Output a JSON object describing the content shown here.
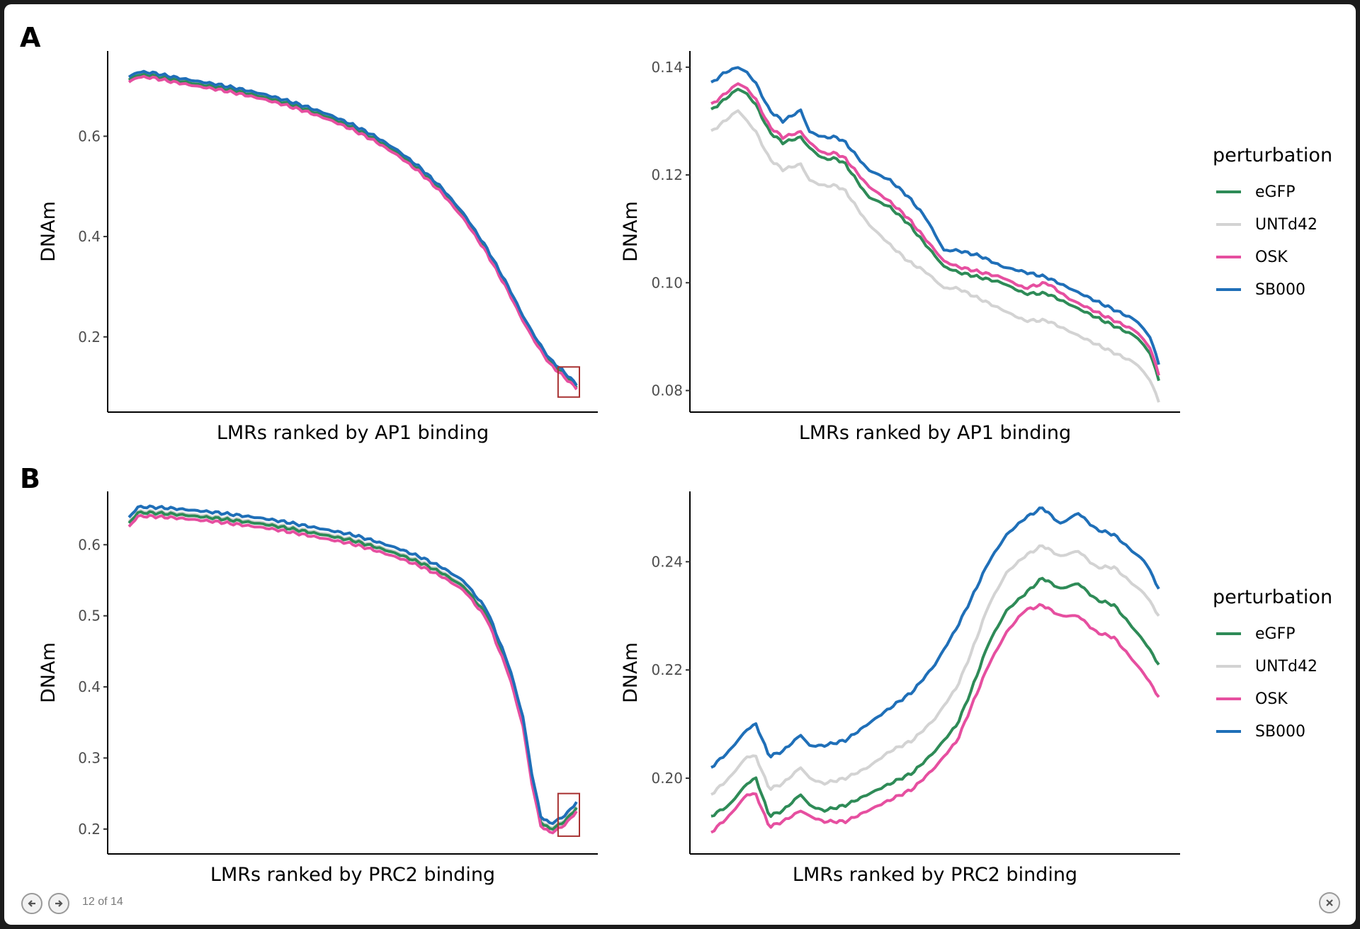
{
  "viewer": {
    "counter_text": "12 of 14",
    "prev_icon": "arrow-left-icon",
    "next_icon": "arrow-right-icon",
    "close_icon": "close-icon"
  },
  "legend": {
    "title": "perturbation",
    "entries": [
      {
        "name": "eGFP",
        "color": "#2e8b57"
      },
      {
        "name": "UNTd42",
        "color": "#d3d3d3"
      },
      {
        "name": "OSK",
        "color": "#e64fa0"
      },
      {
        "name": "SB000",
        "color": "#1f6fb8"
      }
    ]
  },
  "panel_labels": [
    "A",
    "B"
  ],
  "chart_data": [
    {
      "type": "line",
      "panel": "A-left",
      "xlabel": "LMRs ranked by AP1 binding",
      "ylabel": "DNAm",
      "ylim": [
        0.05,
        0.77
      ],
      "yticks": [
        0.2,
        0.4,
        0.6
      ],
      "ytick_labels": [
        "0.2",
        "0.4",
        "0.6"
      ],
      "x": [
        0,
        0.02,
        0.05,
        0.1,
        0.15,
        0.2,
        0.25,
        0.3,
        0.35,
        0.4,
        0.45,
        0.5,
        0.55,
        0.6,
        0.65,
        0.7,
        0.75,
        0.8,
        0.85,
        0.88,
        0.91,
        0.94,
        0.97,
        1.0
      ],
      "series": [
        {
          "name": "eGFP",
          "values": [
            0.712,
            0.722,
            0.721,
            0.712,
            0.704,
            0.697,
            0.688,
            0.678,
            0.666,
            0.652,
            0.636,
            0.617,
            0.594,
            0.566,
            0.532,
            0.49,
            0.437,
            0.37,
            0.29,
            0.236,
            0.19,
            0.15,
            0.126,
            0.1
          ]
        },
        {
          "name": "UNTd42",
          "values": [
            0.714,
            0.724,
            0.723,
            0.714,
            0.706,
            0.699,
            0.69,
            0.68,
            0.668,
            0.654,
            0.638,
            0.619,
            0.596,
            0.568,
            0.534,
            0.492,
            0.439,
            0.372,
            0.292,
            0.238,
            0.192,
            0.152,
            0.128,
            0.102
          ]
        },
        {
          "name": "OSK",
          "values": [
            0.708,
            0.718,
            0.717,
            0.708,
            0.7,
            0.693,
            0.684,
            0.674,
            0.662,
            0.648,
            0.632,
            0.613,
            0.59,
            0.562,
            0.528,
            0.486,
            0.433,
            0.366,
            0.286,
            0.232,
            0.186,
            0.146,
            0.122,
            0.097
          ]
        },
        {
          "name": "SB000",
          "values": [
            0.718,
            0.728,
            0.727,
            0.718,
            0.71,
            0.703,
            0.694,
            0.684,
            0.672,
            0.658,
            0.642,
            0.623,
            0.6,
            0.572,
            0.538,
            0.496,
            0.443,
            0.376,
            0.296,
            0.242,
            0.196,
            0.156,
            0.132,
            0.105
          ]
        }
      ],
      "highlight_box": {
        "x": [
          0.965,
          1.0
        ],
        "y": [
          0.08,
          0.14
        ]
      }
    },
    {
      "type": "line",
      "panel": "A-right",
      "xlabel": "LMRs ranked by AP1 binding",
      "ylabel": "DNAm",
      "ylim": [
        0.076,
        0.143
      ],
      "yticks": [
        0.08,
        0.1,
        0.12,
        0.14
      ],
      "ytick_labels": [
        "0.08",
        "0.10",
        "0.12",
        "0.14"
      ],
      "x": [
        0,
        0.03,
        0.06,
        0.08,
        0.1,
        0.13,
        0.16,
        0.2,
        0.22,
        0.25,
        0.28,
        0.3,
        0.35,
        0.4,
        0.44,
        0.48,
        0.52,
        0.55,
        0.6,
        0.65,
        0.7,
        0.75,
        0.8,
        0.85,
        0.9,
        0.95,
        0.98,
        1.0
      ],
      "series": [
        {
          "name": "eGFP",
          "values": [
            0.132,
            0.134,
            0.136,
            0.135,
            0.133,
            0.128,
            0.126,
            0.127,
            0.125,
            0.123,
            0.123,
            0.122,
            0.116,
            0.114,
            0.111,
            0.107,
            0.103,
            0.102,
            0.101,
            0.1,
            0.098,
            0.098,
            0.096,
            0.094,
            0.092,
            0.09,
            0.087,
            0.082
          ]
        },
        {
          "name": "UNTd42",
          "values": [
            0.128,
            0.13,
            0.132,
            0.13,
            0.128,
            0.123,
            0.121,
            0.122,
            0.119,
            0.118,
            0.118,
            0.117,
            0.111,
            0.107,
            0.104,
            0.102,
            0.099,
            0.099,
            0.097,
            0.095,
            0.093,
            0.093,
            0.091,
            0.089,
            0.087,
            0.085,
            0.082,
            0.078
          ]
        },
        {
          "name": "OSK",
          "values": [
            0.133,
            0.135,
            0.137,
            0.136,
            0.134,
            0.129,
            0.127,
            0.128,
            0.126,
            0.124,
            0.124,
            0.123,
            0.118,
            0.115,
            0.112,
            0.108,
            0.104,
            0.103,
            0.102,
            0.101,
            0.099,
            0.1,
            0.097,
            0.095,
            0.093,
            0.091,
            0.088,
            0.083
          ]
        },
        {
          "name": "SB000",
          "values": [
            0.137,
            0.139,
            0.14,
            0.139,
            0.137,
            0.132,
            0.13,
            0.132,
            0.128,
            0.127,
            0.127,
            0.126,
            0.121,
            0.119,
            0.116,
            0.112,
            0.106,
            0.106,
            0.105,
            0.103,
            0.102,
            0.101,
            0.099,
            0.097,
            0.095,
            0.093,
            0.09,
            0.085
          ]
        }
      ]
    },
    {
      "type": "line",
      "panel": "B-left",
      "xlabel": "LMRs ranked by PRC2 binding",
      "ylabel": "DNAm",
      "ylim": [
        0.165,
        0.675
      ],
      "yticks": [
        0.2,
        0.3,
        0.4,
        0.5,
        0.6
      ],
      "ytick_labels": [
        "0.2",
        "0.3",
        "0.4",
        "0.5",
        "0.6"
      ],
      "x": [
        0,
        0.02,
        0.05,
        0.1,
        0.15,
        0.2,
        0.25,
        0.3,
        0.35,
        0.4,
        0.45,
        0.5,
        0.55,
        0.6,
        0.65,
        0.7,
        0.75,
        0.8,
        0.85,
        0.88,
        0.9,
        0.92,
        0.94,
        0.96,
        0.98,
        1.0
      ],
      "series": [
        {
          "name": "eGFP",
          "values": [
            0.63,
            0.645,
            0.645,
            0.643,
            0.64,
            0.637,
            0.633,
            0.629,
            0.624,
            0.618,
            0.612,
            0.606,
            0.597,
            0.587,
            0.575,
            0.56,
            0.54,
            0.5,
            0.42,
            0.35,
            0.27,
            0.21,
            0.2,
            0.205,
            0.215,
            0.23
          ]
        },
        {
          "name": "UNTd42",
          "values": [
            0.632,
            0.647,
            0.647,
            0.645,
            0.642,
            0.639,
            0.635,
            0.631,
            0.626,
            0.62,
            0.614,
            0.608,
            0.599,
            0.589,
            0.577,
            0.562,
            0.542,
            0.502,
            0.422,
            0.352,
            0.272,
            0.212,
            0.202,
            0.207,
            0.217,
            0.232
          ]
        },
        {
          "name": "OSK",
          "values": [
            0.625,
            0.64,
            0.64,
            0.638,
            0.635,
            0.632,
            0.628,
            0.624,
            0.619,
            0.613,
            0.607,
            0.601,
            0.592,
            0.582,
            0.57,
            0.555,
            0.535,
            0.495,
            0.415,
            0.345,
            0.265,
            0.205,
            0.195,
            0.2,
            0.21,
            0.225
          ]
        },
        {
          "name": "SB000",
          "values": [
            0.638,
            0.653,
            0.653,
            0.651,
            0.648,
            0.645,
            0.641,
            0.637,
            0.632,
            0.626,
            0.62,
            0.614,
            0.605,
            0.595,
            0.583,
            0.568,
            0.548,
            0.508,
            0.428,
            0.358,
            0.278,
            0.218,
            0.208,
            0.213,
            0.223,
            0.238
          ]
        }
      ],
      "highlight_box": {
        "x": [
          0.965,
          1.0
        ],
        "y": [
          0.19,
          0.25
        ]
      }
    },
    {
      "type": "line",
      "panel": "B-right",
      "xlabel": "LMRs ranked by PRC2 binding",
      "ylabel": "DNAm",
      "ylim": [
        0.186,
        0.253
      ],
      "yticks": [
        0.2,
        0.22,
        0.24
      ],
      "ytick_labels": [
        "0.20",
        "0.22",
        "0.24"
      ],
      "x": [
        0,
        0.04,
        0.08,
        0.1,
        0.13,
        0.16,
        0.2,
        0.22,
        0.25,
        0.3,
        0.35,
        0.4,
        0.45,
        0.5,
        0.55,
        0.58,
        0.62,
        0.66,
        0.7,
        0.74,
        0.78,
        0.82,
        0.86,
        0.9,
        0.94,
        0.97,
        1.0
      ],
      "series": [
        {
          "name": "eGFP",
          "values": [
            0.193,
            0.195,
            0.199,
            0.2,
            0.193,
            0.194,
            0.197,
            0.195,
            0.194,
            0.195,
            0.197,
            0.199,
            0.201,
            0.205,
            0.21,
            0.216,
            0.225,
            0.231,
            0.234,
            0.237,
            0.235,
            0.236,
            0.233,
            0.232,
            0.228,
            0.225,
            0.221
          ]
        },
        {
          "name": "UNTd42",
          "values": [
            0.197,
            0.2,
            0.204,
            0.204,
            0.198,
            0.199,
            0.202,
            0.2,
            0.199,
            0.2,
            0.202,
            0.205,
            0.207,
            0.211,
            0.217,
            0.223,
            0.232,
            0.238,
            0.241,
            0.243,
            0.241,
            0.242,
            0.239,
            0.239,
            0.236,
            0.234,
            0.23
          ]
        },
        {
          "name": "OSK",
          "values": [
            0.19,
            0.193,
            0.197,
            0.197,
            0.191,
            0.192,
            0.194,
            0.193,
            0.192,
            0.192,
            0.194,
            0.196,
            0.198,
            0.202,
            0.207,
            0.213,
            0.221,
            0.227,
            0.231,
            0.232,
            0.23,
            0.23,
            0.227,
            0.226,
            0.222,
            0.219,
            0.215
          ]
        },
        {
          "name": "SB000",
          "values": [
            0.202,
            0.205,
            0.209,
            0.21,
            0.204,
            0.205,
            0.208,
            0.206,
            0.206,
            0.207,
            0.21,
            0.213,
            0.216,
            0.221,
            0.228,
            0.233,
            0.24,
            0.245,
            0.248,
            0.25,
            0.247,
            0.249,
            0.246,
            0.245,
            0.242,
            0.24,
            0.235
          ]
        }
      ]
    }
  ]
}
